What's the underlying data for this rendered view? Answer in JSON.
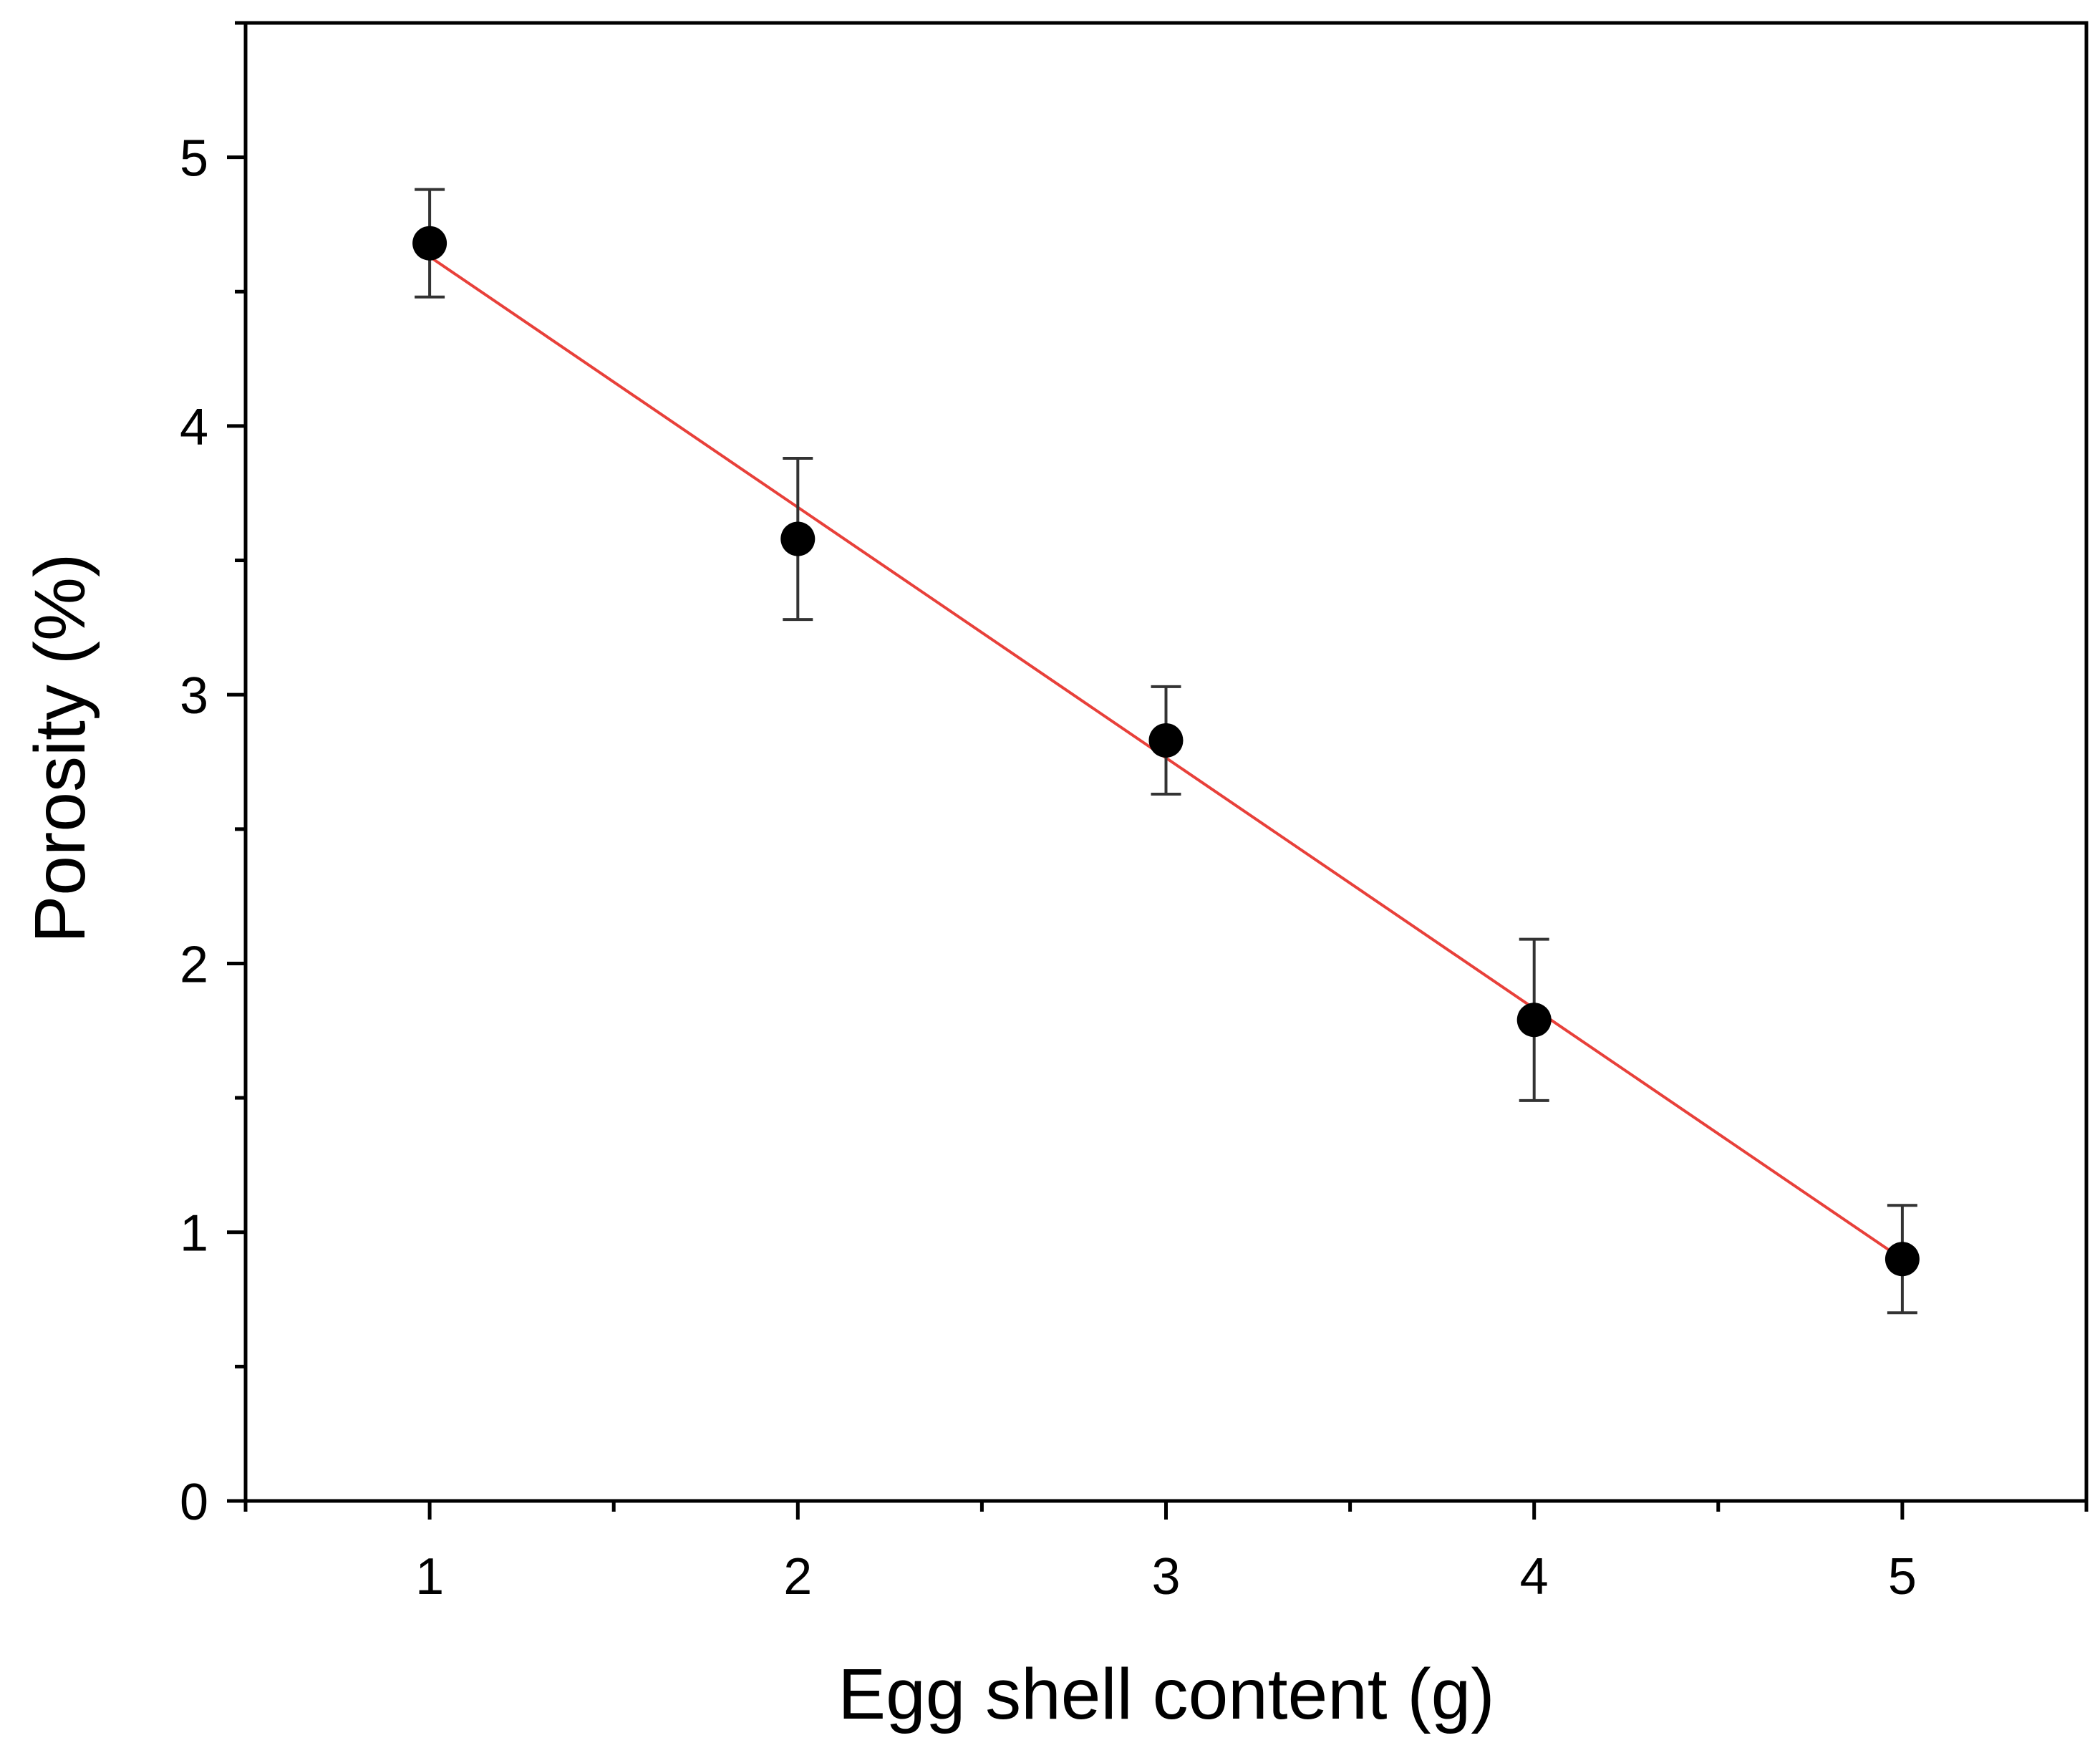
{
  "chart_data": {
    "type": "scatter",
    "title": "",
    "xlabel": "Egg shell content (g)",
    "ylabel": "Porosity (%)",
    "xlim": [
      0.5,
      5.5
    ],
    "ylim": [
      0,
      5.5
    ],
    "x_ticks": [
      1,
      2,
      3,
      4,
      5
    ],
    "y_ticks": [
      0,
      1,
      2,
      3,
      4,
      5
    ],
    "grid": false,
    "legend": "none",
    "series": [
      {
        "name": "Porosity",
        "x": [
          1,
          2,
          3,
          4,
          5
        ],
        "y": [
          4.68,
          3.58,
          2.83,
          1.79,
          0.9
        ],
        "error": [
          0.2,
          0.3,
          0.2,
          0.3,
          0.2
        ],
        "color": "#000000"
      }
    ],
    "fit_line": {
      "name": "Linear fit",
      "x": [
        1,
        5
      ],
      "y": [
        4.63,
        0.9
      ],
      "color": "#e8403a"
    }
  }
}
